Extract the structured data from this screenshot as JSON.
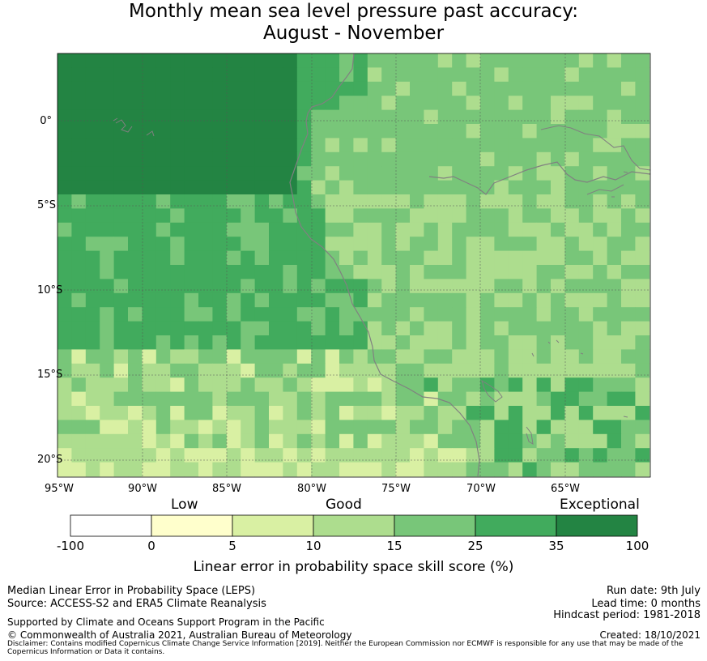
{
  "title_line1": "Monthly mean sea level pressure past accuracy:",
  "title_line2": "August - November",
  "map": {
    "lat_labels": [
      "0°",
      "5°S",
      "10°S",
      "15°S",
      "20°S"
    ],
    "lon_labels": [
      "95°W",
      "90°W",
      "85°W",
      "80°W",
      "75°W",
      "70°W",
      "65°W"
    ],
    "category_colors": [
      "#ffffff",
      "#ffffcc",
      "#d9f0a3",
      "#addd8e",
      "#78c679",
      "#41ab5d",
      "#238443"
    ],
    "coastline_color": "#808080",
    "grid_color": "#555555"
  },
  "colorbar": {
    "categories": [
      "Low",
      "Good",
      "Exceptional"
    ],
    "ticks": [
      "-100",
      "0",
      "5",
      "10",
      "15",
      "25",
      "35",
      "100"
    ],
    "colors": [
      "#ffffff",
      "#ffffcc",
      "#d9f0a3",
      "#addd8e",
      "#78c679",
      "#41ab5d",
      "#238443"
    ],
    "title": "Linear error in probability space skill score (%)"
  },
  "footer": {
    "left1": "Median Linear Error in Probability Space (LEPS)",
    "left2": "Source: ACCESS-S2 and ERA5 Climate Reanalysis",
    "support": "Supported by Climate and Oceans Support Program in the Pacific",
    "copyright": "© Commonwealth of Australia 2021, Australian Bureau of Meteorology",
    "run_date": "Run date: 9th July",
    "lead_time": "Lead time: 0 months",
    "hindcast": "Hindcast period: 1981-2018",
    "created": "Created: 18/10/2021",
    "disclaimer": "Disclaimer: Contains modified Copernicus Climate Change Service Information [2019]. Neither the European Commission nor ECMWF is responsible for any use that may be made of the Copernicus Information or Data it contains."
  }
}
